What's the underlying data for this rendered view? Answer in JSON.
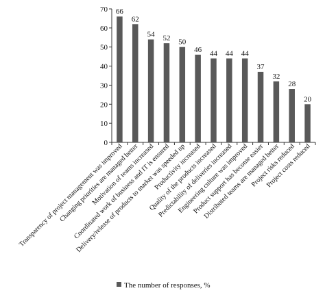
{
  "chart_data": {
    "type": "bar",
    "categories": [
      "Transparency of project management was improved",
      "Changing priorities are managed better",
      "Motivation of teams increased",
      "Coordinated work of business and IT is ensured",
      "Delivery/release of products to market was speeded up",
      "Productivity increased",
      "Quality of the products increased",
      "Predictability of deliveries increased",
      "Engineering culture was improved",
      "Product support has become easier",
      "Distributed teams are managed better",
      "Project risks reduced",
      "Project costs reduced"
    ],
    "series": [
      {
        "name": "The number of responses, %",
        "values": [
          66,
          62,
          54,
          52,
          50,
          46,
          44,
          44,
          44,
          37,
          32,
          28,
          20
        ],
        "color": "#595959"
      }
    ],
    "ylim": [
      0,
      70
    ],
    "yticks": [
      "0",
      "10",
      "20",
      "30",
      "40",
      "50",
      "60",
      "70"
    ],
    "grid": false,
    "legend_position": "bottom",
    "xlabel": "",
    "ylabel": ""
  }
}
